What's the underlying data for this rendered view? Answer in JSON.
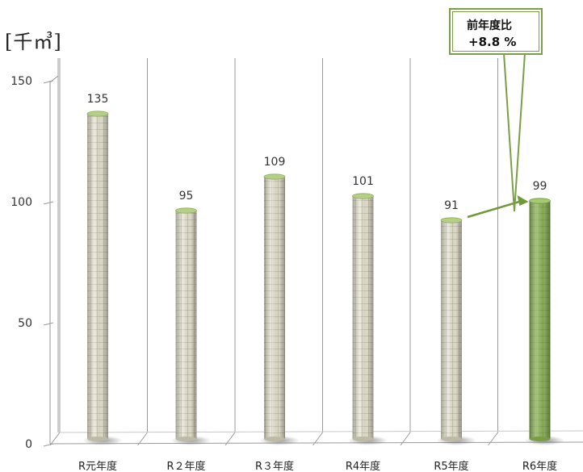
{
  "unit": "[千㎥]",
  "callout": {
    "line1": "前年度比",
    "line2": "+8.8 %"
  },
  "colors": {
    "normal_bar": "#e6e3cf",
    "normal_top": "#b6cf86",
    "highlight_bar": "#8fb35a",
    "highlight_top": "#a7c874",
    "arrow": "#6f9a3a",
    "grid": "#9a9a9a"
  },
  "chart_data": {
    "type": "bar",
    "categories": [
      "R元年度",
      "R２年度",
      "R３年度",
      "R4年度",
      "R5年度",
      "R6年度"
    ],
    "values": [
      135,
      95,
      109,
      101,
      91,
      99
    ],
    "highlight_index": 5,
    "yticks": [
      0,
      50,
      100,
      150
    ],
    "ylim": [
      0,
      150
    ],
    "grid": true,
    "style": "3D cylinders with grid texture"
  }
}
